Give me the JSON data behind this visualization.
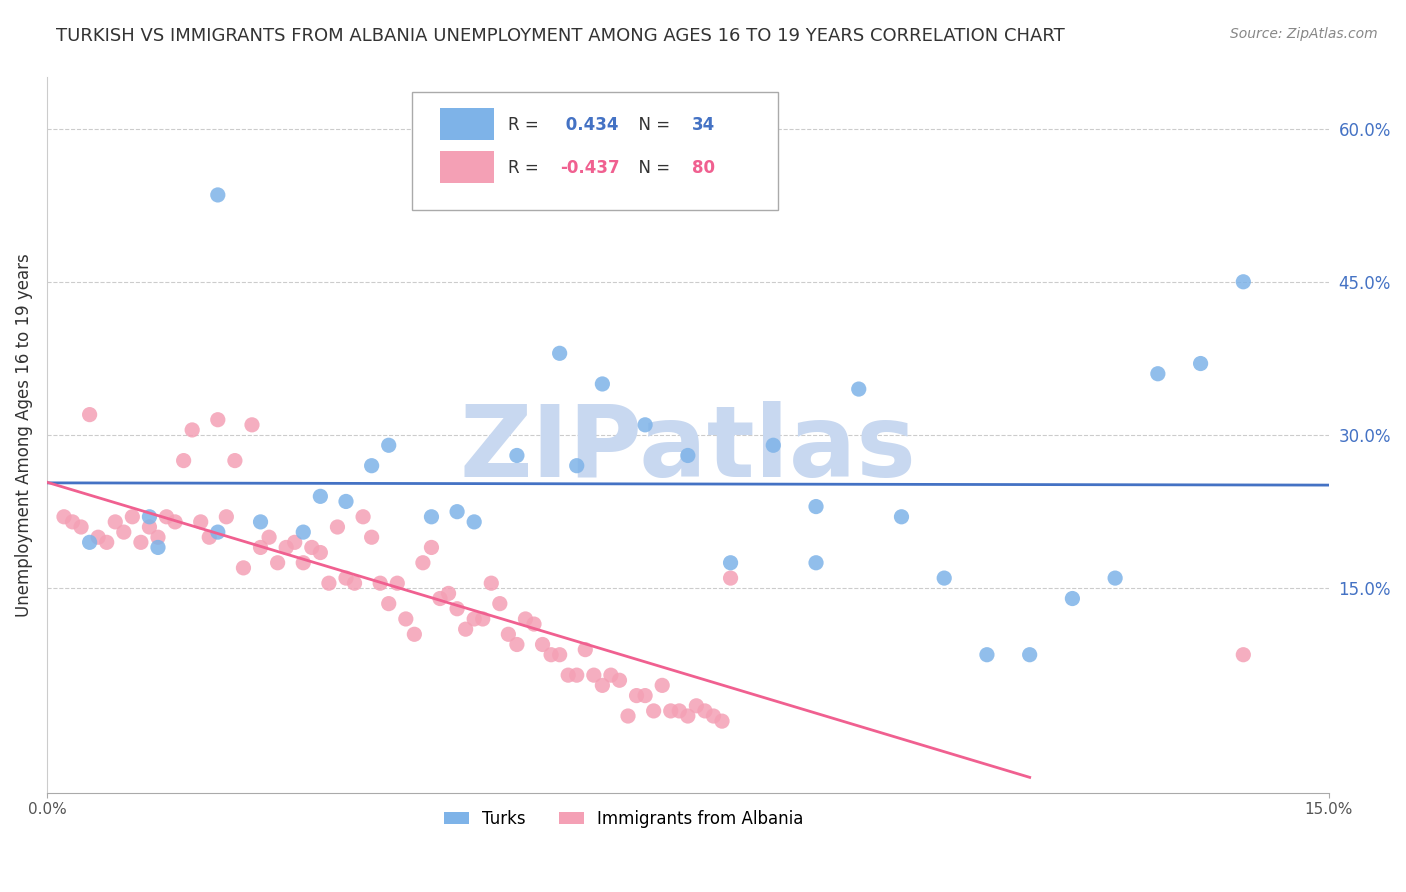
{
  "title": "TURKISH VS IMMIGRANTS FROM ALBANIA UNEMPLOYMENT AMONG AGES 16 TO 19 YEARS CORRELATION CHART",
  "source": "Source: ZipAtlas.com",
  "ylabel": "Unemployment Among Ages 16 to 19 years",
  "xlim": [
    0.0,
    0.15
  ],
  "ylim": [
    -0.05,
    0.65
  ],
  "turks_R": 0.434,
  "turks_N": 34,
  "albania_R": -0.437,
  "albania_N": 80,
  "turks_color": "#7eb3e8",
  "albania_color": "#f4a0b5",
  "line_turks_color": "#4472c4",
  "line_albania_color": "#f06090",
  "watermark_color": "#c8d8f0",
  "watermark_text": "ZIPatlas",
  "background_color": "#ffffff",
  "title_fontsize": 13,
  "source_fontsize": 10,
  "legend_label_turks": "Turks",
  "legend_label_albania": "Immigrants from Albania",
  "turks_x": [
    0.005,
    0.012,
    0.013,
    0.02,
    0.025,
    0.032,
    0.035,
    0.038,
    0.04,
    0.045,
    0.048,
    0.05,
    0.055,
    0.06,
    0.062,
    0.065,
    0.07,
    0.075,
    0.08,
    0.085,
    0.09,
    0.095,
    0.1,
    0.105,
    0.11,
    0.115,
    0.12,
    0.125,
    0.13,
    0.135,
    0.14,
    0.02,
    0.03,
    0.09
  ],
  "turks_y": [
    0.195,
    0.22,
    0.19,
    0.205,
    0.215,
    0.24,
    0.235,
    0.27,
    0.29,
    0.22,
    0.225,
    0.215,
    0.28,
    0.38,
    0.27,
    0.35,
    0.31,
    0.28,
    0.175,
    0.29,
    0.23,
    0.345,
    0.22,
    0.16,
    0.085,
    0.085,
    0.14,
    0.16,
    0.36,
    0.37,
    0.45,
    0.535,
    0.205,
    0.175
  ],
  "albania_x": [
    0.002,
    0.003,
    0.004,
    0.005,
    0.006,
    0.007,
    0.008,
    0.009,
    0.01,
    0.011,
    0.012,
    0.013,
    0.014,
    0.015,
    0.016,
    0.017,
    0.018,
    0.019,
    0.02,
    0.021,
    0.022,
    0.023,
    0.024,
    0.025,
    0.026,
    0.027,
    0.028,
    0.029,
    0.03,
    0.031,
    0.032,
    0.033,
    0.034,
    0.035,
    0.036,
    0.037,
    0.038,
    0.039,
    0.04,
    0.041,
    0.042,
    0.043,
    0.044,
    0.045,
    0.046,
    0.047,
    0.048,
    0.049,
    0.05,
    0.051,
    0.052,
    0.053,
    0.054,
    0.055,
    0.056,
    0.057,
    0.058,
    0.059,
    0.06,
    0.061,
    0.062,
    0.063,
    0.064,
    0.065,
    0.066,
    0.067,
    0.068,
    0.069,
    0.07,
    0.071,
    0.072,
    0.073,
    0.074,
    0.075,
    0.076,
    0.077,
    0.078,
    0.079,
    0.08,
    0.14
  ],
  "albania_y": [
    0.22,
    0.215,
    0.21,
    0.32,
    0.2,
    0.195,
    0.215,
    0.205,
    0.22,
    0.195,
    0.21,
    0.2,
    0.22,
    0.215,
    0.275,
    0.305,
    0.215,
    0.2,
    0.315,
    0.22,
    0.275,
    0.17,
    0.31,
    0.19,
    0.2,
    0.175,
    0.19,
    0.195,
    0.175,
    0.19,
    0.185,
    0.155,
    0.21,
    0.16,
    0.155,
    0.22,
    0.2,
    0.155,
    0.135,
    0.155,
    0.12,
    0.105,
    0.175,
    0.19,
    0.14,
    0.145,
    0.13,
    0.11,
    0.12,
    0.12,
    0.155,
    0.135,
    0.105,
    0.095,
    0.12,
    0.115,
    0.095,
    0.085,
    0.085,
    0.065,
    0.065,
    0.09,
    0.065,
    0.055,
    0.065,
    0.06,
    0.025,
    0.045,
    0.045,
    0.03,
    0.055,
    0.03,
    0.03,
    0.025,
    0.035,
    0.03,
    0.025,
    0.02,
    0.16,
    0.085
  ]
}
